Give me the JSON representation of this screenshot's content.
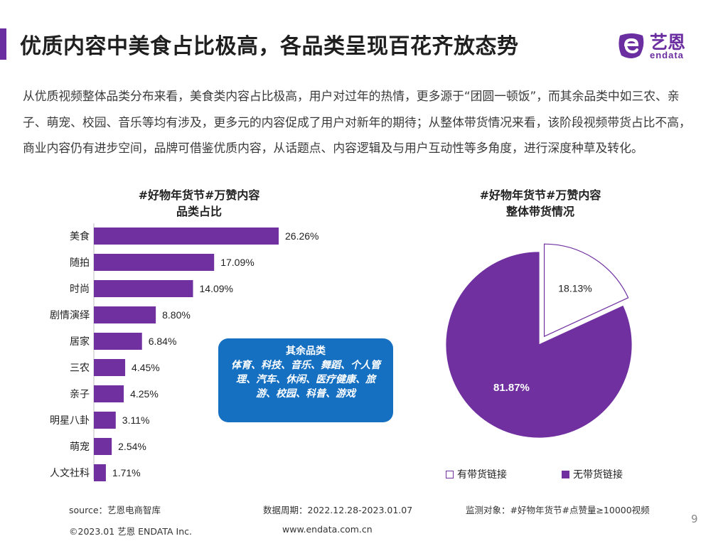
{
  "page": {
    "title": "优质内容中美食占比极高，各品类呈现百花齐放态势",
    "intro": "从优质视频整体品类分布来看，美食类内容占比极高，用户对过年的热情，更多源于“团圆一顿饭”，而其余品类中如三农、亲子、萌宠、校园、音乐等均有涉及，更多元的内容促成了用户对新年的期待；从整体带货情况来看，该阶段视频带货占比不高，商业内容仍有进步空间，品牌可借鉴优质内容，从话题点、内容逻辑及与用户互动性等多角度，进行深度种草及转化。",
    "page_number": "9"
  },
  "logo": {
    "cn": "艺恩",
    "en": "endata"
  },
  "bar_chart": {
    "title_line1": "#好物年货节#万赞内容",
    "title_line2": "品类占比"
  },
  "pie_chart": {
    "title_line1": "#好物年货节#万赞内容",
    "title_line2": "整体带货情况"
  },
  "callout": {
    "title": "其余品类",
    "body": "体育、科技、音乐、舞蹈、个人管理、汽车、休闲、医疗健康、旅游、校园、科普、游戏"
  },
  "footer": {
    "source": "source：艺恩电商智库",
    "period": "数据周期：2022.12.28-2023.01.07",
    "target": "监测对象：#好物年货节#点赞量≥10000视频",
    "copyright": "©2023.01 艺恩 ENDATA Inc.",
    "website": "www.endata.com.cn"
  },
  "colors": {
    "accent": "#6b2ea0",
    "bar": "#7030a0",
    "callout": "#1670c1"
  },
  "chart_data": [
    {
      "type": "bar",
      "orientation": "horizontal",
      "title": "#好物年货节#万赞内容品类占比",
      "categories": [
        "美食",
        "随拍",
        "时尚",
        "剧情演绎",
        "居家",
        "三农",
        "亲子",
        "明星八卦",
        "萌宠",
        "人文社科"
      ],
      "values": [
        26.26,
        17.09,
        14.09,
        8.8,
        6.84,
        4.45,
        4.25,
        3.11,
        2.54,
        1.71
      ],
      "data_labels": [
        "26.26%",
        "17.09%",
        "14.09%",
        "8.80%",
        "6.84%",
        "4.45%",
        "4.25%",
        "3.11%",
        "2.54%",
        "1.71%"
      ],
      "unit": "%",
      "grid": false,
      "legend": "none"
    },
    {
      "type": "pie",
      "title": "#好物年货节#万赞内容整体带货情况",
      "labels": [
        "有带货链接",
        "无带货链接"
      ],
      "values": [
        18.13,
        81.87
      ],
      "data_labels": [
        "18.13%",
        "81.87%"
      ],
      "colors": [
        "#ffffff",
        "#7030a0"
      ],
      "exploded": "有带货链接",
      "legend": "bottom"
    }
  ]
}
